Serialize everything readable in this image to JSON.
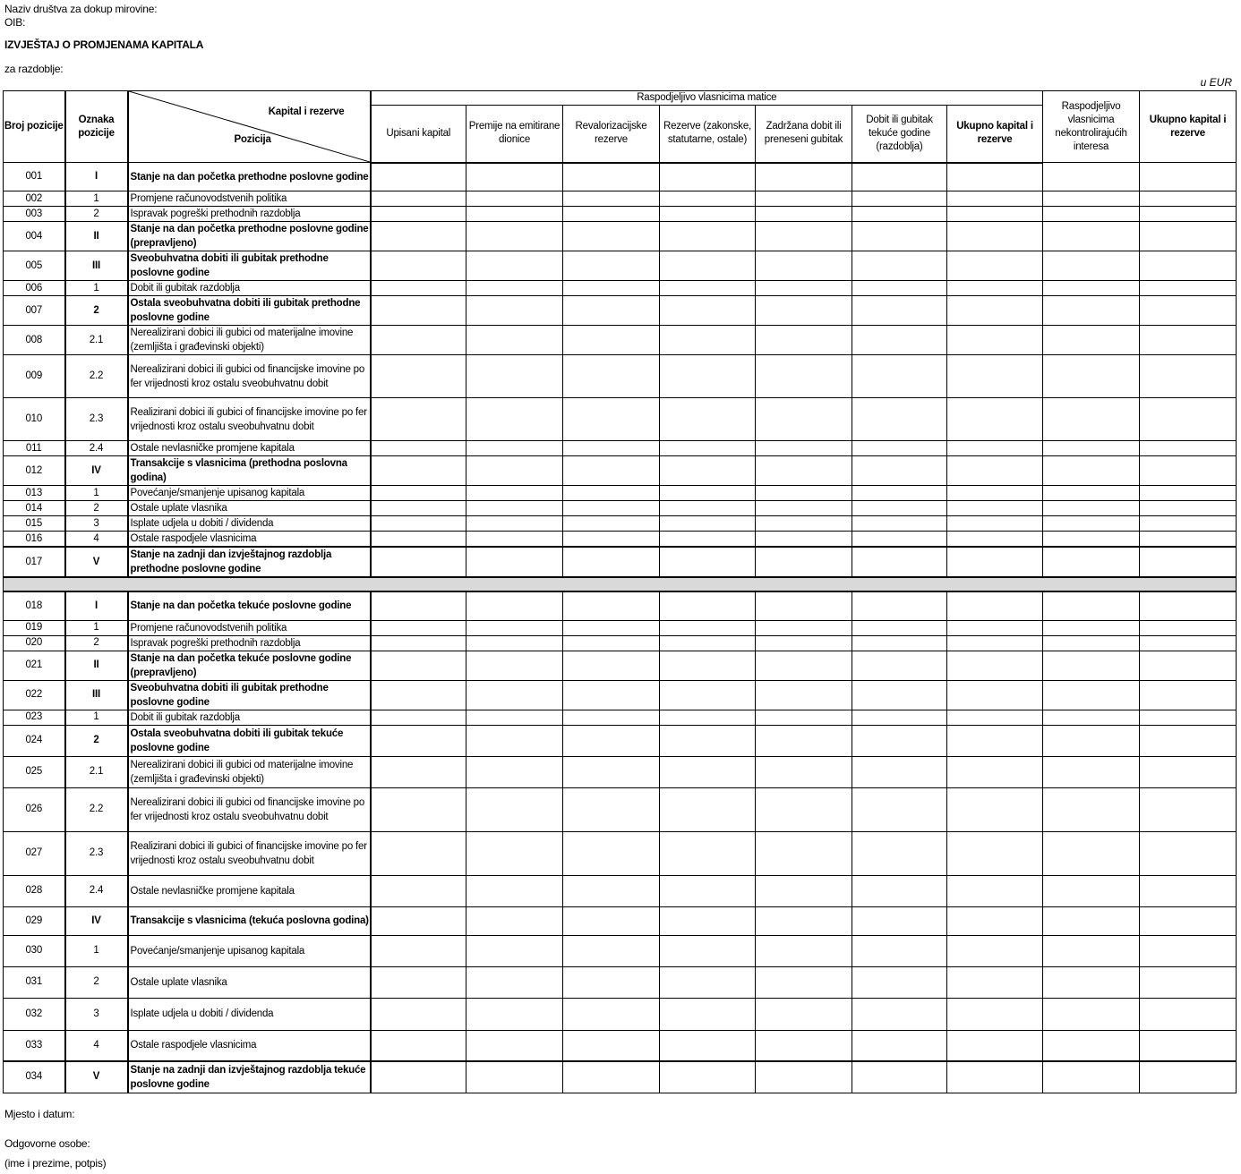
{
  "header": {
    "company_label": "Naziv društva za dokup mirovine:",
    "oib_label": "OIB:",
    "title": "IZVJEŠTAJ O PROMJENAMA KAPITALA",
    "period_label": "za razdoblje:",
    "unit": "u EUR"
  },
  "columns": {
    "broj": "Broj pozicije",
    "oznaka": "Oznaka pozicije",
    "kapital_i_rezerve": "Kapital i rezerve",
    "pozicija": "Pozicija",
    "group": "Raspodjeljivo vlasnicima matice",
    "sub": [
      "Upisani kapital",
      "Premije na emitirane dionice",
      "Revalorizacijske rezerve",
      "Rezerve (zakonske, statutarne, ostale)",
      "Zadržana dobit ili preneseni gubitak",
      "Dobit ili gubitak tekuće godine (razdoblja)",
      "Ukupno kapital i rezerve"
    ],
    "nekontrolirajuci": "Raspodjeljivo vlasnicima nekontrolirajućih interesa",
    "ukupno": "Ukupno kapital i rezerve"
  },
  "rows": [
    {
      "broj": "001",
      "oznaka": "I",
      "text": "Stanje na dan početka prethodne poslovne godine",
      "bold": true
    },
    {
      "broj": "002",
      "oznaka": "1",
      "text": "Promjene računovodstvenih politika",
      "bold": false
    },
    {
      "broj": "003",
      "oznaka": "2",
      "text": "Ispravak  pogreški prethodnih razdoblja",
      "bold": false
    },
    {
      "broj": "004",
      "oznaka": "II",
      "text": "Stanje na dan početka prethodne poslovne godine (prepravljeno)",
      "bold": true
    },
    {
      "broj": "005",
      "oznaka": "III",
      "text": "Sveobuhvatna dobiti ili gubitak prethodne poslovne godine",
      "bold": true
    },
    {
      "broj": "006",
      "oznaka": "1",
      "text": "Dobit ili gubitak razdoblja",
      "bold": false
    },
    {
      "broj": "007",
      "oznaka": "2",
      "text": "Ostala sveobuhvatna dobiti ili gubitak prethodne poslovne godine",
      "bold": true
    },
    {
      "broj": "008",
      "oznaka": "2.1",
      "text": "Nerealizirani dobici ili gubici od materijalne imovine (zemljišta i građevinski objekti)",
      "bold": false
    },
    {
      "broj": "009",
      "oznaka": "2.2",
      "text": "Nerealizirani dobici ili gubici od financijske imovine po fer vrijednosti kroz ostalu sveobuhvatnu dobit",
      "bold": false
    },
    {
      "broj": "010",
      "oznaka": "2.3",
      "text": "Realizirani dobici ili gubici of financijske imovine po fer vrijednosti kroz ostalu sveobuhvatnu dobit",
      "bold": false
    },
    {
      "broj": "011",
      "oznaka": "2.4",
      "text": "Ostale nevlasničke promjene kapitala",
      "bold": false
    },
    {
      "broj": "012",
      "oznaka": "IV",
      "text": "Transakcije s vlasnicima (prethodna poslovna godina)",
      "bold": true
    },
    {
      "broj": "013",
      "oznaka": "1",
      "text": "Povećanje/smanjenje upisanog kapitala",
      "bold": false
    },
    {
      "broj": "014",
      "oznaka": "2",
      "text": "Ostale uplate vlasnika",
      "bold": false
    },
    {
      "broj": "015",
      "oznaka": "3",
      "text": "Isplate udjela u dobiti / dividenda",
      "bold": false
    },
    {
      "broj": "016",
      "oznaka": "4",
      "text": "Ostale raspodjele vlasnicima",
      "bold": false
    },
    {
      "broj": "017",
      "oznaka": "V",
      "text": "Stanje na zadnji dan izvještajnog razdoblja prethodne poslovne godine",
      "bold": true
    },
    {
      "broj": "018",
      "oznaka": "I",
      "text": "Stanje na dan početka tekuće poslovne godine",
      "bold": true
    },
    {
      "broj": "019",
      "oznaka": "1",
      "text": "Promjene računovodstvenih politika",
      "bold": false
    },
    {
      "broj": "020",
      "oznaka": "2",
      "text": "Ispravak  pogreški prethodnih razdoblja",
      "bold": false
    },
    {
      "broj": "021",
      "oznaka": "II",
      "text": "Stanje na dan početka tekuće poslovne godine (prepravljeno)",
      "bold": true
    },
    {
      "broj": "022",
      "oznaka": "III",
      "text": "Sveobuhvatna dobiti ili gubitak prethodne poslovne godine",
      "bold": true
    },
    {
      "broj": "023",
      "oznaka": "1",
      "text": "Dobit ili gubitak razdoblja",
      "bold": false
    },
    {
      "broj": "024",
      "oznaka": "2",
      "text": "Ostala sveobuhvatna dobiti ili gubitak tekuće poslovne godine",
      "bold": true
    },
    {
      "broj": "025",
      "oznaka": "2.1",
      "text": "Nerealizirani dobici ili gubici od materijalne imovine (zemljišta i građevinski objekti)",
      "bold": false
    },
    {
      "broj": "026",
      "oznaka": "2.2",
      "text": "Nerealizirani dobici ili gubici od financijske imovine po fer vrijednosti kroz ostalu sveobuhvatnu dobit",
      "bold": false
    },
    {
      "broj": "027",
      "oznaka": "2.3",
      "text": "Realizirani dobici ili gubici of financijske imovine po fer vrijednosti kroz ostalu sveobuhvatnu dobit",
      "bold": false
    },
    {
      "broj": "028",
      "oznaka": "2.4",
      "text": "Ostale nevlasničke promjene kapitala",
      "bold": false
    },
    {
      "broj": "029",
      "oznaka": "IV",
      "text": "Transakcije s vlasnicima (tekuća poslovna godina)",
      "bold": true
    },
    {
      "broj": "030",
      "oznaka": "1",
      "text": "Povećanje/smanjenje upisanog kapitala",
      "bold": false
    },
    {
      "broj": "031",
      "oznaka": "2",
      "text": "Ostale uplate vlasnika",
      "bold": false
    },
    {
      "broj": "032",
      "oznaka": "3",
      "text": "Isplate udjela u dobiti / dividenda",
      "bold": false
    },
    {
      "broj": "033",
      "oznaka": "4",
      "text": "Ostale raspodjele vlasnicima",
      "bold": false
    },
    {
      "broj": "034",
      "oznaka": "V",
      "text": "Stanje na zadnji dan izvještajnog razdoblja tekuće poslovne godine",
      "bold": true
    }
  ],
  "footer": {
    "place_date": "Mjesto i datum:",
    "responsible": "Odgovorne osobe:",
    "name_sign": "(ime i prezime, potpis)"
  }
}
